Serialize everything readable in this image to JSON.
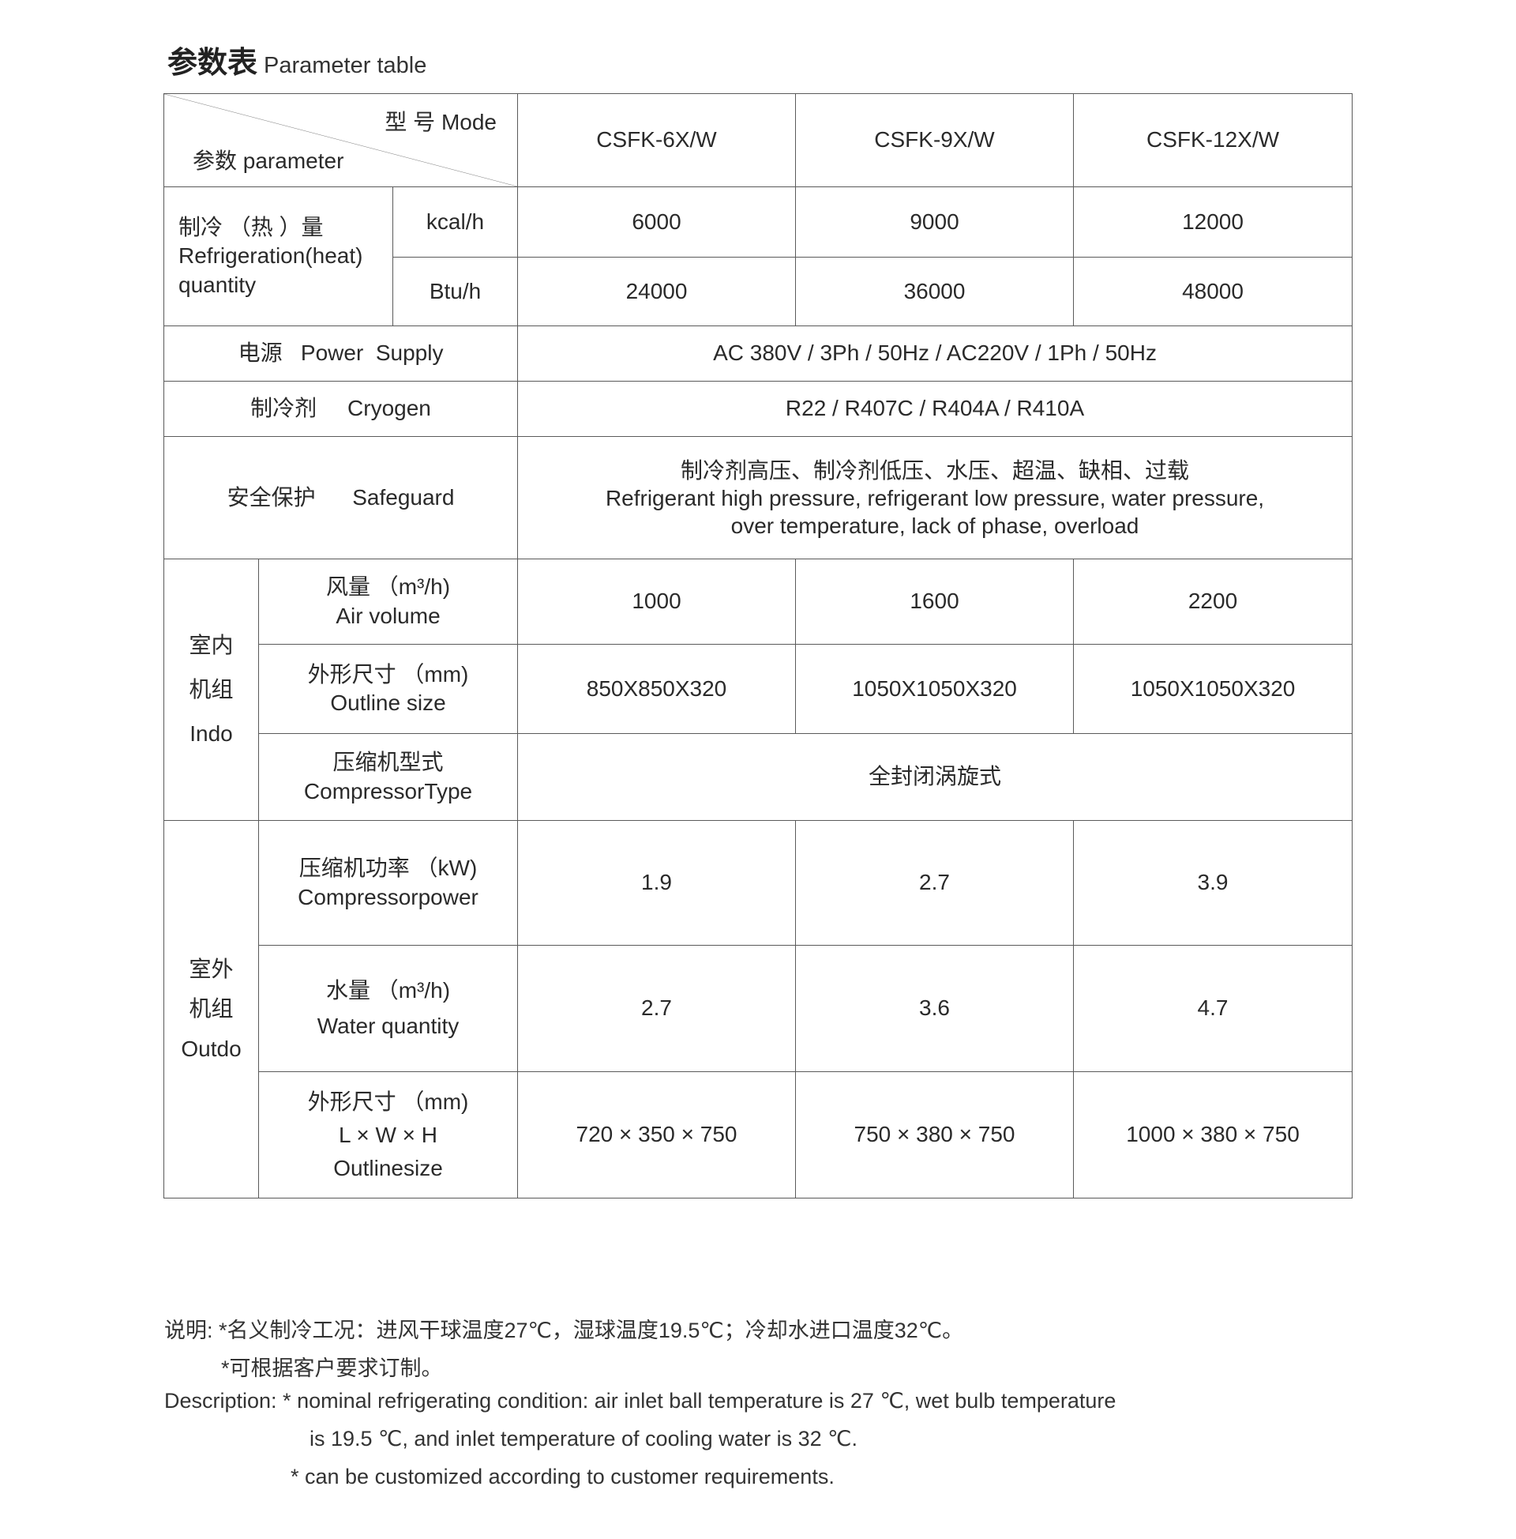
{
  "title": {
    "cn": "参数表",
    "en": "Parameter table"
  },
  "header": {
    "mode_label": "型 号 Mode",
    "param_label": "参数   parameter",
    "models": [
      "CSFK-6X/W",
      "CSFK-9X/W",
      "CSFK-12X/W"
    ]
  },
  "refrigeration": {
    "label_cn": "制冷 （热 ）量",
    "label_en1": "Refrigeration(heat)",
    "label_en2": "quantity",
    "units": [
      "kcal/h",
      "Btu/h"
    ],
    "kcal": [
      "6000",
      "9000",
      "12000"
    ],
    "btu": [
      "24000",
      "36000",
      "48000"
    ]
  },
  "power": {
    "label": "电源   Power  Supply",
    "value": "AC 380V / 3Ph / 50Hz / AC220V / 1Ph / 50Hz"
  },
  "cryogen": {
    "label": "制冷剂     Cryogen",
    "value": "R22 / R407C / R404A / R410A"
  },
  "safeguard": {
    "label": "安全保护      Safeguard",
    "line1": "制冷剂高压、制冷剂低压、水压、超温、缺相、过载",
    "line2": "Refrigerant high pressure, refrigerant low pressure, water pressure,",
    "line3": "over temperature, lack of phase, overload"
  },
  "indoor": {
    "group": [
      "室内",
      "机组",
      "Indo"
    ],
    "air_volume": {
      "cn": "风量 （m³/h)",
      "en": "Air volume",
      "values": [
        "1000",
        "1600",
        "2200"
      ]
    },
    "outline": {
      "cn": "外形尺寸 （mm)",
      "en": "Outline size",
      "values": [
        "850X850X320",
        "1050X1050X320",
        "1050X1050X320"
      ]
    },
    "compressor_type": {
      "cn": "压缩机型式",
      "en": "CompressorType",
      "value": "全封闭涡旋式"
    }
  },
  "outdoor": {
    "group": [
      "室外",
      "机组",
      "Outdo"
    ],
    "compressor_power": {
      "cn": "压缩机功率 （kW)",
      "en": "Compressorpower",
      "values": [
        "1.9",
        "2.7",
        "3.9"
      ]
    },
    "water": {
      "cn": "水量 （m³/h)",
      "en": "Water quantity",
      "values": [
        "2.7",
        "3.6",
        "4.7"
      ]
    },
    "outline": {
      "cn": "外形尺寸 （mm)",
      "dims": "L × W × H",
      "en": "Outlinesize",
      "values": [
        "720 × 350 × 750",
        "750 × 380 × 750",
        "1000 × 380 × 750"
      ]
    }
  },
  "notes": {
    "line1": "说明: *名义制冷工况：进风干球温度27℃，湿球温度19.5℃；冷却水进口温度32℃。",
    "line2": "*可根据客户要求订制。",
    "line3": "Description: * nominal refrigerating condition: air inlet ball temperature is 27 ℃, wet bulb temperature",
    "line4": "is 19.5 ℃, and inlet temperature of cooling water is 32 ℃.",
    "line5": "* can be customized according to customer requirements."
  }
}
